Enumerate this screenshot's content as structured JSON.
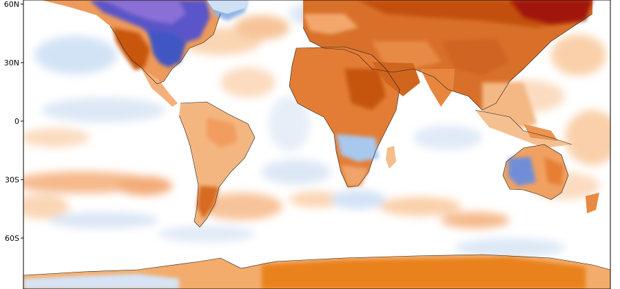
{
  "map": {
    "latitude_ticks": [
      {
        "label": "60N",
        "lat": 60
      },
      {
        "label": "30N",
        "lat": 30
      },
      {
        "label": "0",
        "lat": 0
      },
      {
        "label": "30S",
        "lat": -30
      },
      {
        "label": "60S",
        "lat": -60
      }
    ],
    "colors": {
      "ocean": "#ffffff",
      "frame": "#000000",
      "coast": "#1a1a1a",
      "warm_light": "#f9c9a0",
      "warm_mid": "#ee8a3c",
      "warm_strong": "#c7560f",
      "warm_max": "#a11a0a",
      "cool_light": "#cfe0f5",
      "cool_mid": "#8fb4e6",
      "cool_strong": "#3d5fc6",
      "cool_max": "#6a4cc7"
    }
  }
}
